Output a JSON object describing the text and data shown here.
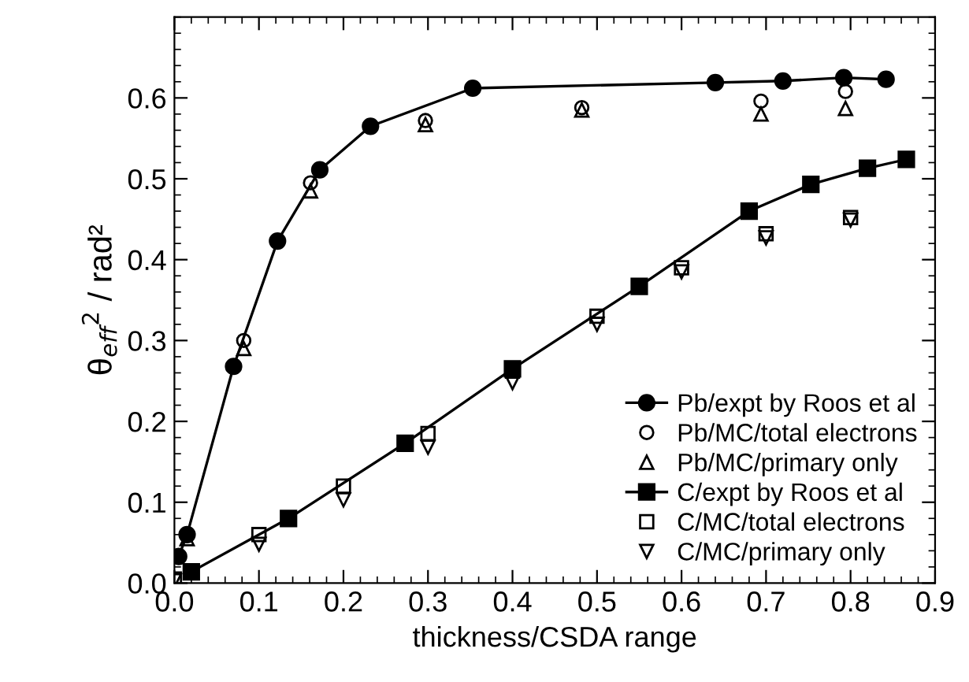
{
  "chart_data": {
    "type": "scatter",
    "xlabel": "thickness/CSDA range",
    "ylabel": "θ$_{eff}$$^{2}$ / rad²",
    "xlim": [
      0,
      0.9
    ],
    "ylim": [
      0,
      0.7
    ],
    "xticks": [
      {
        "value": 0,
        "label": "0.0"
      },
      0.1,
      0.2,
      0.3,
      0.4,
      0.5,
      0.6,
      0.7,
      0.8,
      0.9
    ],
    "yticks": [
      {
        "value": 0,
        "label": "0.0"
      },
      0.1,
      0.2,
      0.3,
      0.4,
      0.5,
      0.6
    ],
    "grid": false,
    "legend": "bottom right",
    "series": [
      {
        "name": "Pb/expt by Roos et al",
        "type": "line",
        "marker": "circle",
        "color": "#000000",
        "x": [
          0.005,
          0.015,
          0.07,
          0.122,
          0.172,
          0.232,
          0.353,
          0.64,
          0.72,
          0.792,
          0.842
        ],
        "values": [
          0.033,
          0.06,
          0.268,
          0.423,
          0.511,
          0.565,
          0.612,
          0.619,
          0.621,
          0.625,
          0.623
        ]
      },
      {
        "name": "Pb/MC/total electrons",
        "marker": "circle",
        "color": "#000000",
        "x": [
          0.082,
          0.161,
          0.297,
          0.482,
          0.694,
          0.794
        ],
        "values": [
          0.3,
          0.495,
          0.572,
          0.588,
          0.596,
          0.608
        ]
      },
      {
        "name": "Pb/MC/primary only",
        "marker": "triangle",
        "color": "#000000",
        "x": [
          0.015,
          0.082,
          0.161,
          0.297,
          0.482,
          0.694,
          0.794
        ],
        "values": [
          0.055,
          0.29,
          0.485,
          0.567,
          0.585,
          0.58,
          0.587
        ]
      },
      {
        "name": "C/expt by Roos et al",
        "type": "line",
        "marker": "square",
        "color": "#000000",
        "x": [
          0.02,
          0.135,
          0.273,
          0.4,
          0.55,
          0.68,
          0.753,
          0.82,
          0.866
        ],
        "values": [
          0.014,
          0.08,
          0.173,
          0.265,
          0.367,
          0.46,
          0.493,
          0.513,
          0.524
        ]
      },
      {
        "name": "C/MC/total electrons",
        "marker": "square",
        "color": "#000000",
        "x": [
          0.0,
          0.1,
          0.2,
          0.3,
          0.4,
          0.5,
          0.6,
          0.7,
          0.8
        ],
        "values": [
          0.005,
          0.06,
          0.12,
          0.185,
          0.262,
          0.33,
          0.39,
          0.432,
          0.452
        ]
      },
      {
        "name": "C/MC/primary only",
        "marker": "triangle_down",
        "color": "#000000",
        "x": [
          0.0,
          0.1,
          0.2,
          0.3,
          0.4,
          0.5,
          0.6,
          0.7,
          0.8
        ],
        "values": [
          0.003,
          0.048,
          0.103,
          0.168,
          0.248,
          0.32,
          0.385,
          0.427,
          0.449
        ]
      }
    ]
  }
}
